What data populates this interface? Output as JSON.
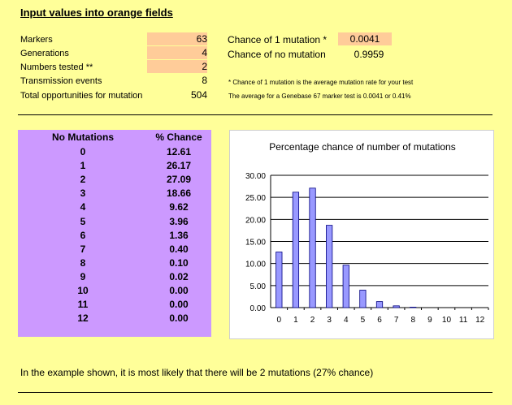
{
  "header": {
    "title": "Input values into orange fields"
  },
  "inputs": [
    {
      "label": "Markers",
      "value": "63",
      "orange": true
    },
    {
      "label": "Generations",
      "value": "4",
      "orange": true
    },
    {
      "label": "Numbers tested **",
      "value": "2",
      "orange": true
    },
    {
      "label": "Transmission events",
      "value": "8",
      "orange": false
    },
    {
      "label": "Total opportunities for mutation",
      "value": "504",
      "orange": false
    }
  ],
  "right": {
    "chance1_label": "Chance of 1 mutation *",
    "chance1_value": "0.0041",
    "chance_none_label": "Chance of no mutation",
    "chance_none_value": "0.9959",
    "note1": "* Chance of 1 mutation is the average mutation rate for your test",
    "note2": "The average for a Genebase 67 marker test is 0.0041 or 0.41%"
  },
  "table": {
    "headers": [
      "No Mutations",
      "% Chance"
    ],
    "rows": [
      [
        "0",
        "12.61"
      ],
      [
        "1",
        "26.17"
      ],
      [
        "2",
        "27.09"
      ],
      [
        "3",
        "18.66"
      ],
      [
        "4",
        "9.62"
      ],
      [
        "5",
        "3.96"
      ],
      [
        "6",
        "1.36"
      ],
      [
        "7",
        "0.40"
      ],
      [
        "8",
        "0.10"
      ],
      [
        "9",
        "0.02"
      ],
      [
        "10",
        "0.00"
      ],
      [
        "11",
        "0.00"
      ],
      [
        "12",
        "0.00"
      ]
    ]
  },
  "colors": {
    "background": "#FFFF99",
    "orange": "#FFCC99",
    "purple": "#CC99FF",
    "bar_fill": "#9999FF",
    "bar_stroke": "#000080"
  },
  "chart_data": {
    "type": "bar",
    "title": "Percentage chance of number of mutations",
    "categories": [
      "0",
      "1",
      "2",
      "3",
      "4",
      "5",
      "6",
      "7",
      "8",
      "9",
      "10",
      "11",
      "12"
    ],
    "values": [
      12.61,
      26.17,
      27.09,
      18.66,
      9.62,
      3.96,
      1.36,
      0.4,
      0.1,
      0.02,
      0.0,
      0.0,
      0.0
    ],
    "ylim": [
      0,
      30
    ],
    "yticks": [
      "0.00",
      "5.00",
      "10.00",
      "15.00",
      "20.00",
      "25.00",
      "30.00"
    ],
    "grid": true,
    "legend": "none"
  },
  "footer": {
    "text": "In the example shown, it is most likely that there will be 2 mutations (27% chance)"
  }
}
